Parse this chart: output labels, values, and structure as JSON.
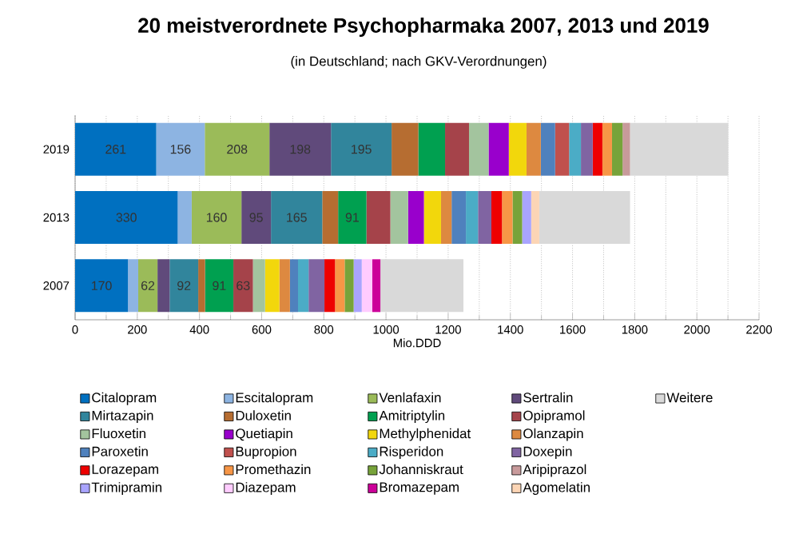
{
  "chart_data": {
    "type": "bar",
    "orientation": "horizontal",
    "stacked": true,
    "title": "20 meistverordnete Psychopharmaka 2007, 2013 und 2019",
    "subtitle": "(in Deutschland; nach GKV-Verordnungen)",
    "xlabel": "Mio.DDD",
    "categories": [
      "2019",
      "2013",
      "2007"
    ],
    "xlim": [
      0,
      2200
    ],
    "xticks": [
      0,
      200,
      400,
      600,
      800,
      1000,
      1200,
      1400,
      1600,
      1800,
      2000,
      2200
    ],
    "grid": "x",
    "legend": "bottom",
    "series": [
      {
        "name": "Citalopram",
        "color": "#0070c0",
        "values": [
          261,
          330,
          170
        ],
        "value_labels": [
          "261",
          "330",
          "170"
        ]
      },
      {
        "name": "Escitalopram",
        "color": "#8db4e2",
        "values": [
          156,
          45,
          33
        ],
        "value_labels": [
          "156",
          null,
          null
        ]
      },
      {
        "name": "Venlafaxin",
        "color": "#9bbb59",
        "values": [
          208,
          160,
          62
        ],
        "value_labels": [
          "208",
          "160",
          "62"
        ]
      },
      {
        "name": "Sertralin",
        "color": "#604a7b",
        "values": [
          198,
          95,
          39
        ],
        "value_labels": [
          "198",
          "95",
          null
        ]
      },
      {
        "name": "Mirtazapin",
        "color": "#31859c",
        "values": [
          195,
          165,
          92
        ],
        "value_labels": [
          "195",
          "165",
          "92"
        ]
      },
      {
        "name": "Duloxetin",
        "color": "#b66d31",
        "values": [
          86,
          51,
          22
        ]
      },
      {
        "name": "Amitriptylin",
        "color": "#00a050",
        "values": [
          86,
          91,
          91
        ],
        "value_labels": [
          null,
          "91",
          "91"
        ]
      },
      {
        "name": "Opipramol",
        "color": "#a5434a",
        "values": [
          77,
          77,
          63
        ],
        "value_labels": [
          null,
          null,
          "63"
        ]
      },
      {
        "name": "Fluoxetin",
        "color": "#a3c49e",
        "values": [
          63,
          57,
          39
        ]
      },
      {
        "name": "Quetiapin",
        "color": "#9900cc",
        "values": [
          65,
          51,
          null
        ]
      },
      {
        "name": "Methylphenidat",
        "color": "#f2d70c",
        "values": [
          57,
          55,
          46
        ]
      },
      {
        "name": "Olanzapin",
        "color": "#dd8940",
        "values": [
          46,
          34,
          34
        ]
      },
      {
        "name": "Paroxetin",
        "color": "#4f81bd",
        "values": [
          46,
          46,
          26
        ]
      },
      {
        "name": "Bupropion",
        "color": "#c0504d",
        "values": [
          45,
          null,
          null
        ]
      },
      {
        "name": "Risperidon",
        "color": "#4bacc6",
        "values": [
          38,
          39,
          34
        ]
      },
      {
        "name": "Doxepin",
        "color": "#8064a2",
        "values": [
          38,
          43,
          51
        ]
      },
      {
        "name": "Lorazepam",
        "color": "#ee0000",
        "values": [
          31,
          34,
          34
        ]
      },
      {
        "name": "Promethazin",
        "color": "#f79646",
        "values": [
          31,
          34,
          31
        ]
      },
      {
        "name": "Johanniskraut",
        "color": "#77a33a",
        "values": [
          34,
          31,
          29
        ]
      },
      {
        "name": "Aripiprazol",
        "color": "#c89a9b",
        "values": [
          24,
          null,
          null
        ]
      },
      {
        "name": "Trimipramin",
        "color": "#a9a4fe",
        "values": [
          null,
          29,
          26
        ]
      },
      {
        "name": "Diazepam",
        "color": "#ffccff",
        "values": [
          null,
          null,
          34
        ]
      },
      {
        "name": "Bromazepam",
        "color": "#cc0099",
        "values": [
          null,
          null,
          26
        ]
      },
      {
        "name": "Agomelatin",
        "color": "#fcd5b5",
        "values": [
          null,
          26,
          null
        ]
      },
      {
        "name": "Weitere",
        "color": "#d9d9d9",
        "values": [
          316,
          292,
          267
        ]
      }
    ]
  }
}
